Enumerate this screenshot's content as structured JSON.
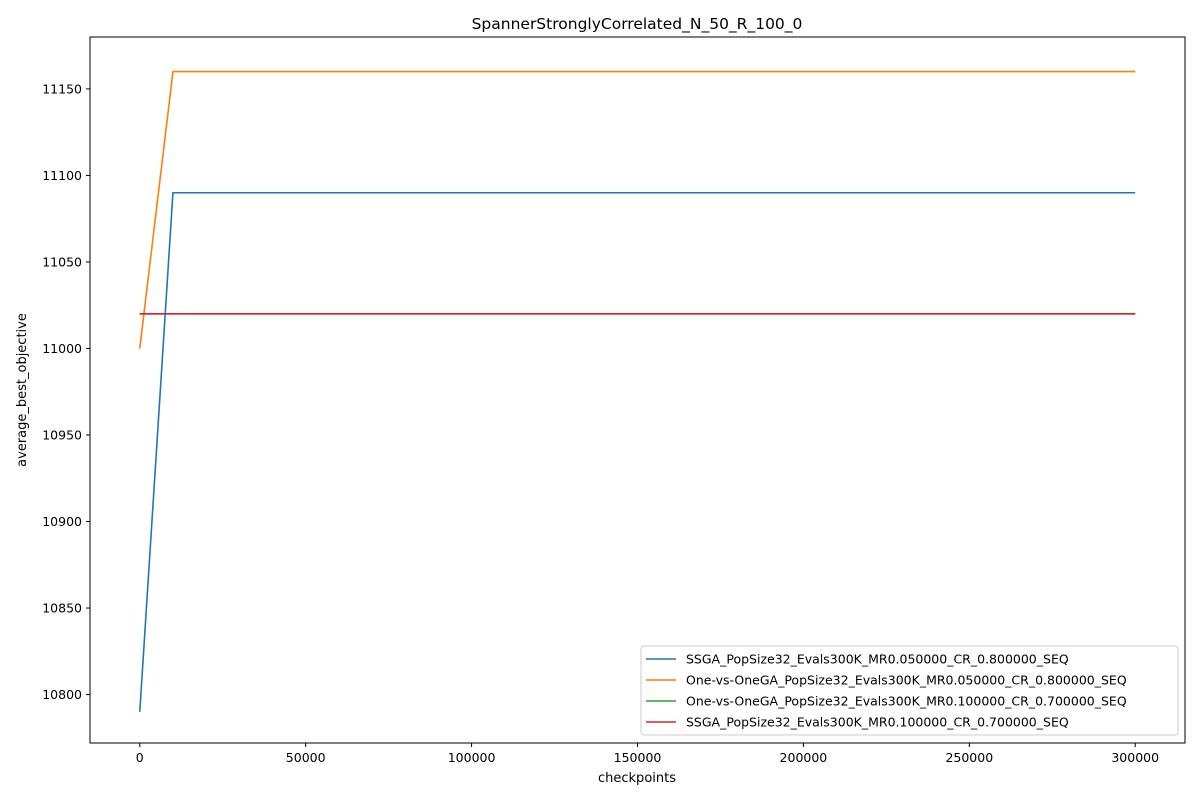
{
  "chart_data": {
    "type": "line",
    "title": "SpannerStronglyCorrelated_N_50_R_100_0",
    "xlabel": "checkpoints",
    "ylabel": "average_best_objective",
    "xlim": [
      -15000,
      315000
    ],
    "ylim": [
      10772,
      11180
    ],
    "xticks": [
      0,
      50000,
      100000,
      150000,
      200000,
      250000,
      300000
    ],
    "yticks": [
      10800,
      10850,
      10900,
      10950,
      11000,
      11050,
      11100,
      11150
    ],
    "grid": false,
    "legend_position": "lower-right",
    "x": [
      0,
      10000,
      300000
    ],
    "series": [
      {
        "name": "SSGA_PopSize32_Evals300K_MR0.050000_CR_0.800000_SEQ",
        "color": "#1f77b4",
        "values": [
          10790,
          11090,
          11090
        ]
      },
      {
        "name": "One-vs-OneGA_PopSize32_Evals300K_MR0.050000_CR_0.800000_SEQ",
        "color": "#ff7f0e",
        "values": [
          11000,
          11160,
          11160
        ]
      },
      {
        "name": "One-vs-OneGA_PopSize32_Evals300K_MR0.100000_CR_0.700000_SEQ",
        "color": "#2ca02c",
        "values": [
          11020,
          11020,
          11020
        ]
      },
      {
        "name": "SSGA_PopSize32_Evals300K_MR0.100000_CR_0.700000_SEQ",
        "color": "#d62728",
        "values": [
          11020,
          11020,
          11020
        ]
      }
    ]
  }
}
